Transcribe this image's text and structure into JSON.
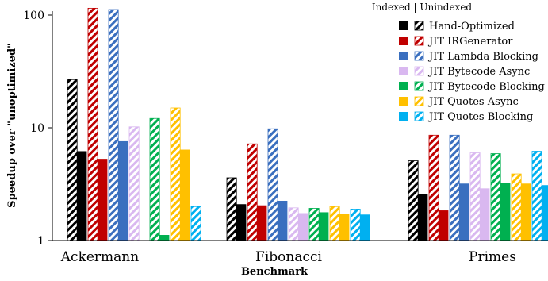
{
  "chart_data": {
    "type": "bar",
    "xlabel": "Benchmark",
    "ylabel": "Speedup over \"unoptimized\"",
    "yscale": "log",
    "ylim": [
      1,
      120
    ],
    "yticks": [
      1,
      10,
      100
    ],
    "ytick_labels": [
      "1",
      "10",
      "100"
    ],
    "grid": false,
    "legend_position": "top-right",
    "legend_header": "Indexed | Unindexed",
    "categories": [
      "Ackermann",
      "Fibonacci",
      "Primes"
    ],
    "series": [
      {
        "name": "Hand-Optimized",
        "color": "#000000",
        "unindexed": [
          26.8,
          3.6,
          5.1
        ],
        "indexed": [
          6.2,
          2.1,
          2.6
        ]
      },
      {
        "name": "JIT IRGenerator",
        "color": "#c00000",
        "unindexed": [
          115,
          7.2,
          8.6
        ],
        "indexed": [
          5.3,
          2.05,
          1.85
        ]
      },
      {
        "name": "JIT Lambda Blocking",
        "color": "#3a6fbf",
        "unindexed": [
          112,
          9.8,
          8.6
        ],
        "indexed": [
          7.6,
          2.25,
          3.2
        ]
      },
      {
        "name": "JIT Bytecode Async",
        "color": "#d9b8f0",
        "unindexed": [
          10.2,
          1.95,
          6.0
        ],
        "indexed": [
          1.0,
          1.75,
          2.9
        ]
      },
      {
        "name": "JIT Bytecode Blocking",
        "color": "#00b050",
        "unindexed": [
          12.1,
          1.93,
          5.9
        ],
        "indexed": [
          1.12,
          1.78,
          3.25
        ]
      },
      {
        "name": "JIT Quotes Async",
        "color": "#ffc000",
        "unindexed": [
          15.0,
          2.0,
          3.9
        ],
        "indexed": [
          6.4,
          1.72,
          3.2
        ]
      },
      {
        "name": "JIT Quotes Blocking",
        "color": "#00b0f0",
        "unindexed": [
          2.0,
          1.9,
          6.2
        ],
        "indexed": [
          1.0,
          1.7,
          3.1
        ]
      }
    ]
  }
}
